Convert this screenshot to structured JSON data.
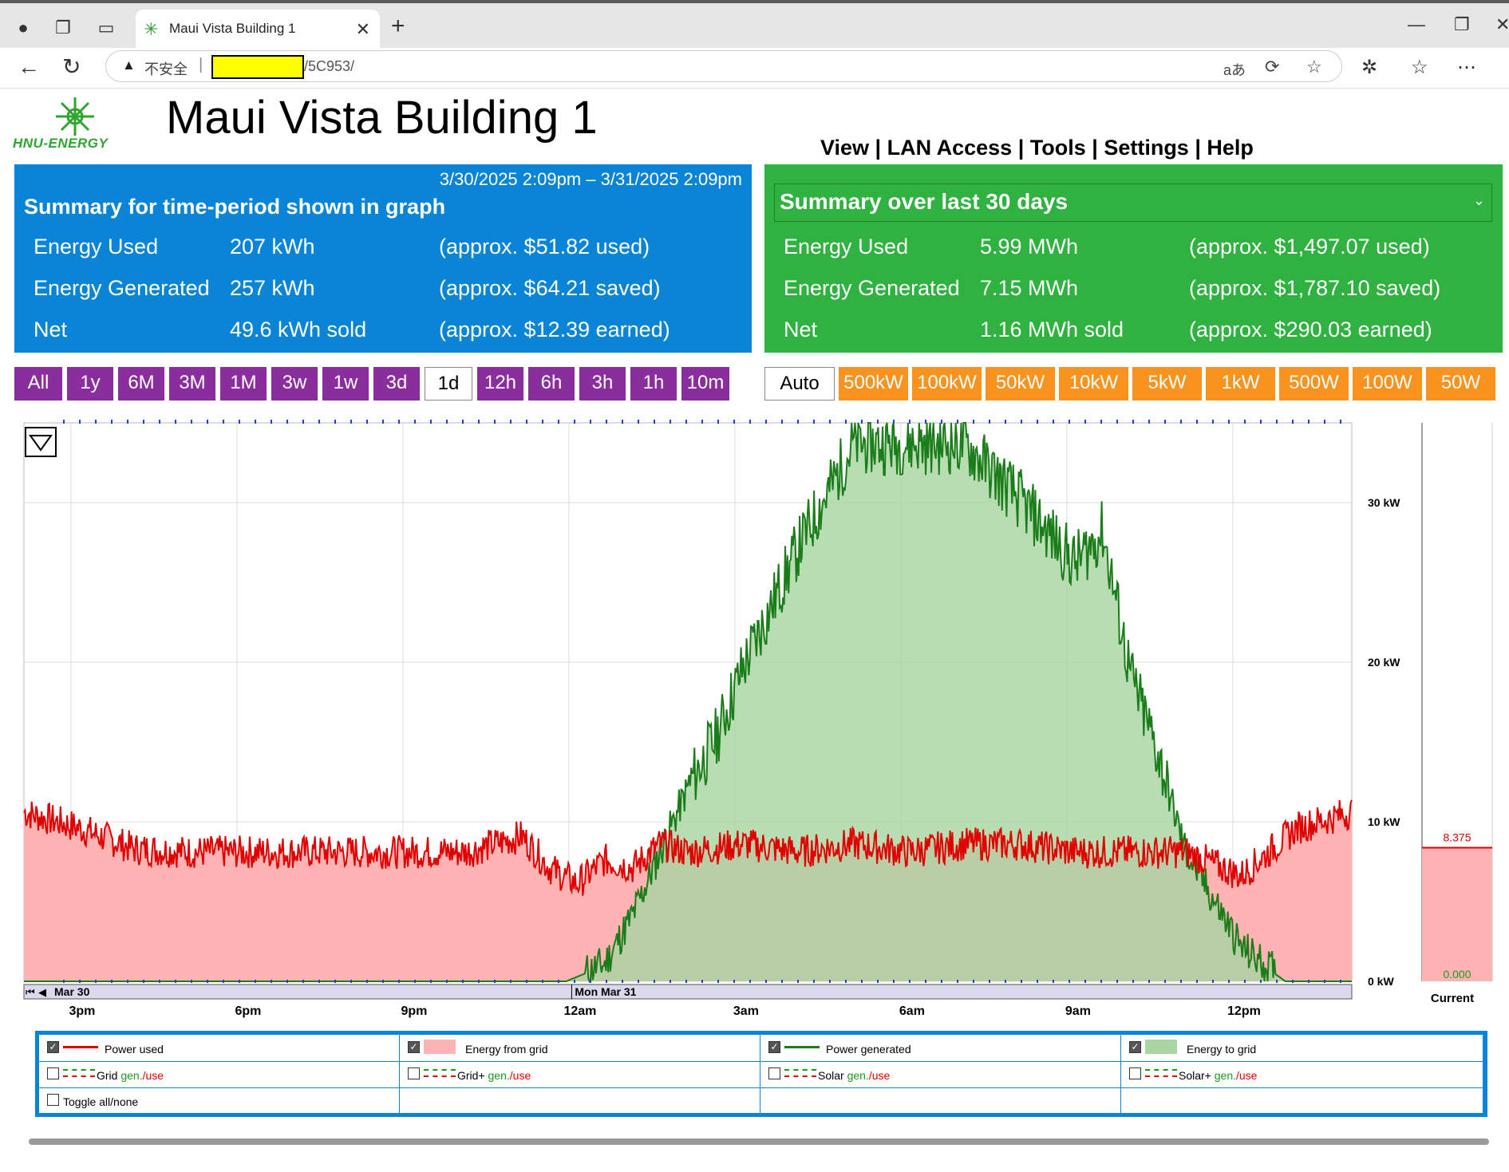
{
  "browser": {
    "tab_title": "Maui Vista Building 1",
    "address_warning": "不安全",
    "url_path": "/5C953/"
  },
  "page": {
    "logo_text": "HNU-ENERGY",
    "title": "Maui Vista Building 1",
    "nav": [
      "View",
      "LAN Access",
      "Tools",
      "Settings",
      "Help"
    ]
  },
  "summary_period": {
    "range": "3/30/2025 2:09pm – 3/31/2025 2:09pm",
    "title": "Summary for time-period shown in graph",
    "rows": [
      {
        "label": "Energy Used",
        "value": "207 kWh",
        "money": "(approx. $51.82 used)"
      },
      {
        "label": "Energy Generated",
        "value": "257 kWh",
        "money": "(approx. $64.21 saved)"
      },
      {
        "label": "Net",
        "value": "49.6 kWh sold",
        "money": "(approx. $12.39 earned)"
      }
    ]
  },
  "summary_30": {
    "title": "Summary over last 30 days",
    "rows": [
      {
        "label": "Energy Used",
        "value": "5.99 MWh",
        "money": "(approx. $1,497.07 used)"
      },
      {
        "label": "Energy Generated",
        "value": "7.15 MWh",
        "money": "(approx. $1,787.10 saved)"
      },
      {
        "label": "Net",
        "value": "1.16 MWh sold",
        "money": "(approx. $290.03 earned)"
      }
    ]
  },
  "ranges": [
    "All",
    "1y",
    "6M",
    "3M",
    "1M",
    "3w",
    "1w",
    "3d",
    "1d",
    "12h",
    "6h",
    "3h",
    "1h",
    "10m"
  ],
  "selected_range": "1d",
  "scales": [
    "Auto",
    "500kW",
    "100kW",
    "50kW",
    "10kW",
    "5kW",
    "1kW",
    "500W",
    "100W",
    "50W"
  ],
  "selected_scale": "Auto",
  "chart": {
    "date_labels": [
      "Mar 30",
      "Mon Mar 31"
    ],
    "time_labels": [
      "3pm",
      "6pm",
      "9pm",
      "12am",
      "3am",
      "6am",
      "9am",
      "12pm"
    ],
    "y_labels": [
      "30 kW",
      "20 kW",
      "10 kW",
      "0 kW"
    ],
    "current_label": "Current",
    "current_value": "8.375",
    "current_zero": "0.000"
  },
  "chart_data": {
    "type": "area",
    "ylim": [
      0,
      35
    ],
    "yunit": "kW",
    "xlabels": [
      "3pm",
      "6pm",
      "9pm",
      "12am",
      "3am",
      "6am",
      "9am",
      "12pm"
    ],
    "series": [
      {
        "name": "Power used",
        "color": "#e00000",
        "x_hours": [
          0,
          1,
          2,
          3,
          4,
          5,
          6,
          7,
          8,
          9,
          9.5,
          10,
          10.5,
          11,
          11.5,
          12,
          13,
          14,
          15,
          16,
          17,
          18,
          19,
          20,
          21,
          22,
          23,
          24
        ],
        "values": [
          10.5,
          9.5,
          8.2,
          8.0,
          8.0,
          8.0,
          8.0,
          8.0,
          8.0,
          9.0,
          7.0,
          6.0,
          7.5,
          7.0,
          8.5,
          8.0,
          8.5,
          8.0,
          8.5,
          8.0,
          8.5,
          8.5,
          8.0,
          8.0,
          8.0,
          6.5,
          9.5,
          10.5
        ]
      },
      {
        "name": "Power generated",
        "color": "#1a7d1a",
        "x_hours": [
          0,
          9,
          9.8,
          10.5,
          11,
          11.5,
          12,
          12.5,
          13,
          14,
          15,
          16,
          17,
          18,
          19,
          19.5,
          20,
          20.5,
          21,
          21.5,
          22,
          22.8,
          23.5,
          24
        ],
        "values": [
          0,
          0,
          0,
          1.0,
          4.0,
          8.0,
          12.0,
          15.0,
          19.5,
          27.0,
          33.5,
          33.5,
          33.5,
          30.0,
          26.0,
          28.0,
          19.0,
          14.0,
          8.0,
          5.0,
          2.0,
          0,
          0,
          0
        ]
      }
    ]
  },
  "legend": {
    "rows": [
      [
        {
          "label": "Power used",
          "checked": true,
          "swatch": "line-red"
        },
        {
          "label": "Energy from grid",
          "checked": true,
          "swatch": "fill-red"
        },
        {
          "label": "Power generated",
          "checked": true,
          "swatch": "line-green"
        },
        {
          "label": "Energy to grid",
          "checked": true,
          "swatch": "fill-green"
        }
      ],
      [
        {
          "label": "Grid",
          "checked": false,
          "swatch": "dash"
        },
        {
          "label": "Grid+",
          "checked": false,
          "swatch": "dashdot"
        },
        {
          "label": "Solar",
          "checked": false,
          "swatch": "dot"
        },
        {
          "label": "Solar+",
          "checked": false,
          "swatch": "dotdot"
        }
      ]
    ],
    "gen": "gen.",
    "use": "/use",
    "toggle": "Toggle all/none"
  }
}
